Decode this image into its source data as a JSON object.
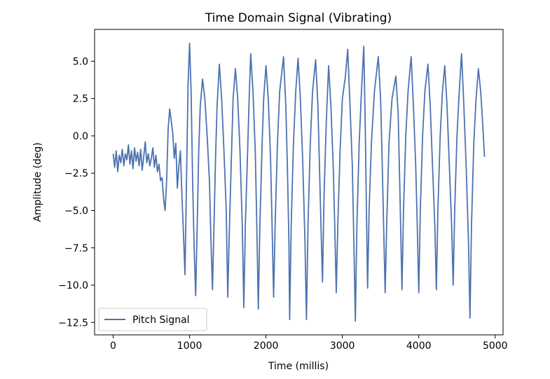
{
  "chart_data": {
    "type": "line",
    "title": "Time Domain Signal (Vibrating)",
    "x_label": "Time (millis)",
    "y_label": "Amplitude (deg)",
    "legend": "lower left",
    "x": [
      0,
      20,
      40,
      60,
      80,
      100,
      120,
      140,
      160,
      180,
      200,
      220,
      240,
      260,
      280,
      300,
      320,
      340,
      360,
      380,
      400,
      420,
      440,
      460,
      480,
      500,
      520,
      540,
      560,
      580,
      600,
      620,
      640,
      660,
      680,
      700,
      720,
      740,
      760,
      780,
      800,
      820,
      840,
      860,
      880,
      900,
      920,
      940,
      960,
      980,
      1000,
      1020,
      1040,
      1060,
      1080,
      1100,
      1120,
      1140,
      1170,
      1200,
      1230,
      1260,
      1280,
      1300,
      1320,
      1340,
      1360,
      1390,
      1420,
      1450,
      1480,
      1500,
      1520,
      1550,
      1570,
      1600,
      1630,
      1660,
      1690,
      1710,
      1730,
      1760,
      1780,
      1800,
      1830,
      1860,
      1880,
      1900,
      1920,
      1950,
      1970,
      2000,
      2030,
      2060,
      2080,
      2100,
      2120,
      2150,
      2180,
      2230,
      2260,
      2280,
      2300,
      2310,
      2330,
      2360,
      2390,
      2420,
      2450,
      2480,
      2510,
      2530,
      2550,
      2580,
      2610,
      2650,
      2680,
      2700,
      2720,
      2740,
      2760,
      2790,
      2820,
      2850,
      2880,
      2900,
      2920,
      2940,
      2970,
      3000,
      3040,
      3070,
      3100,
      3130,
      3150,
      3170,
      3190,
      3220,
      3250,
      3280,
      3300,
      3315,
      3330,
      3350,
      3380,
      3420,
      3470,
      3500,
      3520,
      3540,
      3560,
      3580,
      3610,
      3650,
      3700,
      3730,
      3750,
      3780,
      3800,
      3830,
      3860,
      3900,
      3930,
      3960,
      3980,
      4000,
      4020,
      4050,
      4080,
      4120,
      4150,
      4180,
      4210,
      4230,
      4250,
      4280,
      4310,
      4340,
      4370,
      4400,
      4430,
      4450,
      4470,
      4500,
      4530,
      4560,
      4590,
      4620,
      4650,
      4670,
      4690,
      4720,
      4750,
      4780,
      4810,
      4840,
      4860
    ],
    "series": [
      {
        "name": "Pitch Signal",
        "color": "#4c72b0",
        "values": [
          -1.2,
          -2.1,
          -1.0,
          -2.4,
          -1.3,
          -1.8,
          -0.9,
          -2.0,
          -1.2,
          -1.6,
          -0.6,
          -1.9,
          -1.0,
          -2.2,
          -0.8,
          -1.7,
          -1.1,
          -2.0,
          -0.9,
          -2.3,
          -1.4,
          -0.4,
          -1.8,
          -1.2,
          -2.0,
          -1.5,
          -0.8,
          -2.1,
          -1.3,
          -2.4,
          -1.9,
          -3.0,
          -2.8,
          -4.2,
          -5.0,
          -3.0,
          0.5,
          1.8,
          1.0,
          0.2,
          -1.5,
          -0.5,
          -3.5,
          -2.0,
          -1.0,
          -4.0,
          -6.5,
          -9.3,
          -3.0,
          3.4,
          6.2,
          3.0,
          -3.0,
          -7.5,
          -10.7,
          -6.0,
          -1.0,
          2.0,
          3.8,
          2.5,
          0.0,
          -3.0,
          -7.0,
          -10.3,
          -6.0,
          -1.5,
          2.0,
          4.8,
          2.5,
          -1.0,
          -5.0,
          -10.8,
          -6.5,
          -1.0,
          2.5,
          4.5,
          2.5,
          -1.0,
          -6.0,
          -11.5,
          -6.0,
          -1.0,
          2.5,
          5.5,
          3.0,
          -1.0,
          -6.0,
          -11.6,
          -6.0,
          -0.5,
          2.5,
          4.7,
          2.5,
          -1.5,
          -6.0,
          -10.8,
          -6.0,
          -0.5,
          3.0,
          5.3,
          2.0,
          -2.0,
          -7.0,
          -12.3,
          -6.0,
          -0.5,
          3.0,
          5.2,
          2.5,
          -1.5,
          -7.0,
          -12.3,
          -6.0,
          -0.5,
          3.0,
          5.1,
          2.0,
          -2.0,
          -6.0,
          -9.8,
          -4.0,
          1.0,
          4.7,
          2.0,
          -2.0,
          -6.0,
          -10.5,
          -6.0,
          -1.0,
          2.5,
          4.0,
          5.8,
          2.0,
          -2.0,
          -7.0,
          -12.4,
          -6.0,
          -0.5,
          3.0,
          6.0,
          0.5,
          -5.0,
          -10.2,
          -5.0,
          -0.5,
          3.0,
          5.3,
          2.5,
          -1.5,
          -6.0,
          -10.5,
          -6.0,
          -0.5,
          2.5,
          4.0,
          1.5,
          -3.0,
          -10.3,
          -5.0,
          0.0,
          3.0,
          5.3,
          2.0,
          -2.0,
          -6.0,
          -10.5,
          -5.0,
          0.0,
          3.0,
          4.8,
          2.0,
          -2.0,
          -6.0,
          -10.3,
          -5.0,
          0.0,
          3.0,
          4.7,
          2.0,
          -2.0,
          -6.0,
          -10.0,
          -5.0,
          0.0,
          3.0,
          5.5,
          2.0,
          -2.0,
          -7.0,
          -12.2,
          -6.0,
          -0.5,
          2.5,
          4.5,
          3.0,
          0.5,
          -1.4
        ]
      }
    ],
    "xlim": [
      -243,
      5103
    ],
    "ylim": [
      -13.33,
      7.13
    ],
    "xticks": [
      0,
      1000,
      2000,
      3000,
      4000,
      5000
    ],
    "yticks": [
      {
        "value": -12.5,
        "label": "−12.5"
      },
      {
        "value": -10,
        "label": "−10.0"
      },
      {
        "value": -7.5,
        "label": "−7.5"
      },
      {
        "value": -5,
        "label": "−5.0"
      },
      {
        "value": -2.5,
        "label": "−2.5"
      },
      {
        "value": 0,
        "label": "0.0"
      },
      {
        "value": 2.5,
        "label": "2.5"
      },
      {
        "value": 5,
        "label": "5.0"
      }
    ]
  }
}
